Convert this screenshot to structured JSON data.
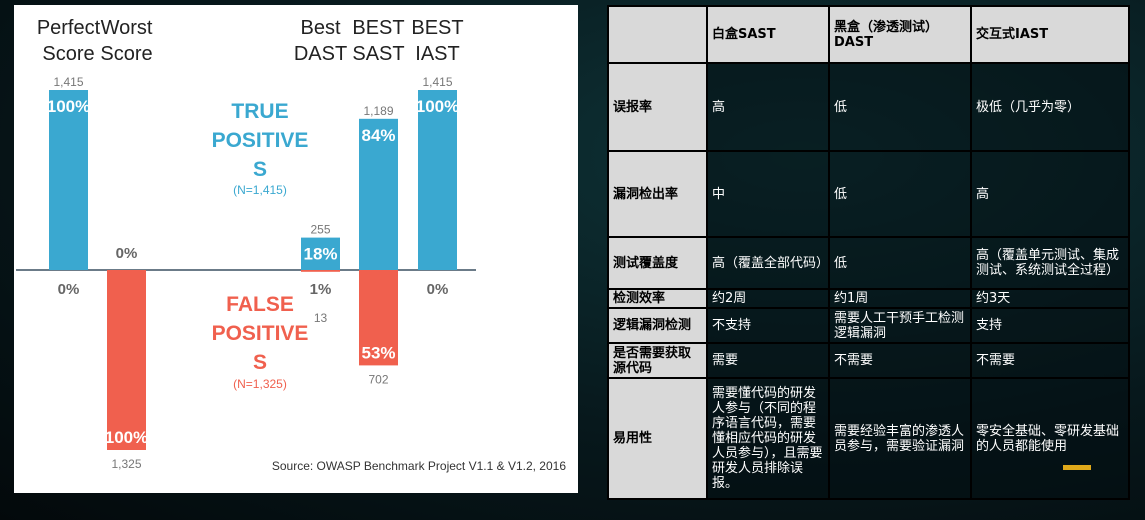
{
  "chart_data": {
    "type": "bar",
    "categories": [
      "Perfect Score",
      "Worst Score",
      "Best DAST",
      "BEST SAST",
      "BEST IAST"
    ],
    "series": [
      {
        "name": "TRUE POSITIVE S",
        "note": "(N=1,415)",
        "percent": [
          100,
          0,
          18,
          84,
          100
        ],
        "counts": [
          "1,415",
          "",
          "255",
          "1,189",
          "1,415"
        ],
        "percent_labels": [
          "100%",
          "0%",
          "18%",
          "84%",
          "100%"
        ],
        "color": "#3aa8d0"
      },
      {
        "name": "FALSE POSITIVE S",
        "note": "(N=1,325)",
        "percent": [
          0,
          100,
          1,
          53,
          0
        ],
        "counts": [
          "",
          "1,325",
          "13",
          "702",
          ""
        ],
        "percent_labels": [
          "0%",
          "100%",
          "1%",
          "53%",
          "0%"
        ],
        "color": "#f0604e"
      }
    ],
    "category_lines": [
      [
        "Perfect",
        "Score"
      ],
      [
        "Worst",
        "Score"
      ],
      [
        "Best",
        "DAST"
      ],
      [
        "BEST",
        "SAST"
      ],
      [
        "BEST",
        "IAST"
      ]
    ],
    "tp_title_lines": [
      "TRUE",
      "POSITIVE",
      "S"
    ],
    "fp_title_lines": [
      "FALSE",
      "POSITIVE",
      "S"
    ],
    "source": "Source: OWASP Benchmark Project V1.1 & V1.2, 2016",
    "ylim": [
      -100,
      100
    ]
  },
  "table": {
    "headers": [
      "",
      "白盒SAST",
      "黑盒（渗透测试）DAST",
      "交互式IAST"
    ],
    "rows": [
      [
        "误报率",
        "高",
        "低",
        "极低（几乎为零）"
      ],
      [
        "漏洞检出率",
        "中",
        "低",
        "高"
      ],
      [
        "测试覆盖度",
        "高（覆盖全部代码）",
        "低",
        "高（覆盖单元测试、集成测试、系统测试全过程）"
      ],
      [
        "检测效率",
        "约2周",
        "约1周",
        "约3天"
      ],
      [
        "逻辑漏洞检测",
        "不支持",
        "需要人工干预手工检测逻辑漏洞",
        "支持"
      ],
      [
        "是否需要获取源代码",
        "需要",
        "不需要",
        "不需要"
      ],
      [
        "易用性",
        "需要懂代码的研发人参与（不同的程序语言代码，需要懂相应代码的研发人员参与），且需要研发人员排除误报。",
        "需要经验丰富的渗透人员参与，需要验证漏洞",
        "零安全基础、零研发基础的人员都能使用"
      ]
    ]
  },
  "colors": {
    "accent": "#e0a91a",
    "tp": "#3aa8d0",
    "fp": "#f0604e"
  }
}
